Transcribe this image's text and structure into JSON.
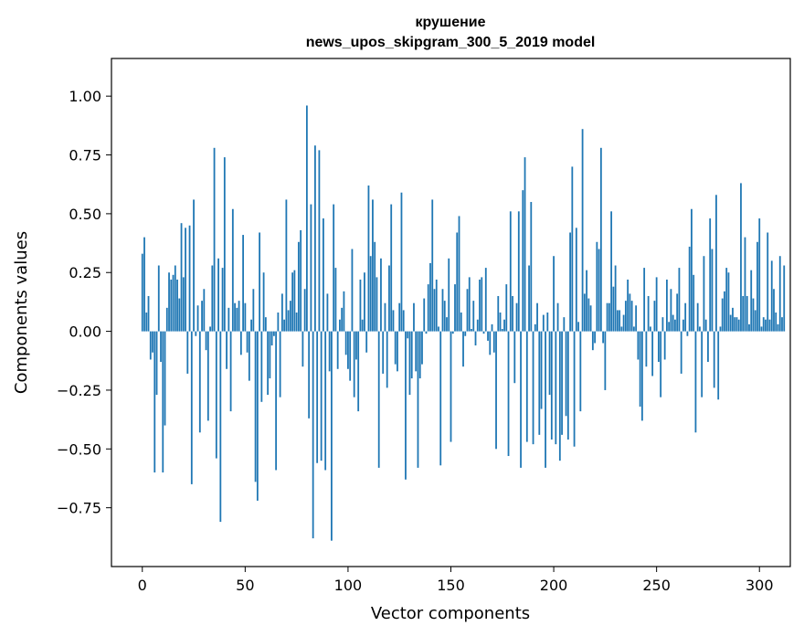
{
  "chart_data": {
    "type": "bar",
    "title": "крушение",
    "subtitle": "news_upos_skipgram_300_5_2019 model",
    "xlabel": "Vector components",
    "ylabel": "Components values",
    "xlim": [
      -15,
      315
    ],
    "ylim": [
      -1.0,
      1.16
    ],
    "xticks": [
      0,
      50,
      100,
      150,
      200,
      250,
      300
    ],
    "yticks": [
      -0.75,
      -0.5,
      -0.25,
      0.0,
      0.25,
      0.5,
      0.75,
      1.0
    ],
    "xtick_labels": [
      "0",
      "50",
      "100",
      "150",
      "200",
      "250",
      "300"
    ],
    "ytick_labels": [
      "−0.75",
      "−0.50",
      "−0.25",
      "0.00",
      "0.25",
      "0.50",
      "0.75",
      "1.00"
    ],
    "grid": false,
    "bar_color": "#1f77b4",
    "values": [
      0.33,
      0.4,
      0.08,
      0.15,
      -0.12,
      -0.09,
      -0.6,
      -0.27,
      0.28,
      -0.13,
      -0.6,
      -0.4,
      0.1,
      0.25,
      0.22,
      0.24,
      0.28,
      0.22,
      0.14,
      0.46,
      0.23,
      0.44,
      -0.18,
      0.45,
      -0.65,
      0.56,
      -0.02,
      0.11,
      -0.43,
      0.13,
      0.18,
      -0.08,
      -0.38,
      0.02,
      0.28,
      0.78,
      -0.54,
      0.31,
      -0.81,
      0.27,
      0.74,
      -0.16,
      0.1,
      -0.34,
      0.52,
      0.12,
      0.1,
      0.13,
      -0.1,
      0.41,
      0.12,
      -0.09,
      -0.21,
      0.05,
      0.18,
      -0.64,
      -0.72,
      0.42,
      -0.3,
      0.25,
      0.06,
      -0.27,
      -0.2,
      -0.06,
      -0.02,
      -0.59,
      0.08,
      -0.28,
      0.16,
      0.05,
      0.56,
      0.09,
      0.13,
      0.25,
      0.26,
      0.08,
      0.38,
      0.43,
      -0.15,
      0.18,
      0.96,
      -0.37,
      0.54,
      -0.88,
      0.79,
      -0.56,
      0.77,
      -0.55,
      0.48,
      -0.59,
      0.16,
      -0.17,
      -0.89,
      0.54,
      0.27,
      -0.16,
      0.05,
      0.1,
      0.17,
      -0.1,
      -0.16,
      -0.21,
      0.35,
      -0.28,
      -0.12,
      -0.34,
      0.22,
      0.05,
      0.25,
      -0.09,
      0.62,
      0.32,
      0.56,
      0.38,
      0.23,
      -0.58,
      0.31,
      -0.18,
      0.12,
      -0.24,
      0.28,
      0.54,
      0.09,
      -0.14,
      -0.17,
      0.12,
      0.59,
      0.09,
      -0.63,
      -0.03,
      -0.27,
      -0.2,
      0.12,
      -0.17,
      -0.58,
      -0.2,
      -0.14,
      0.14,
      -0.01,
      0.2,
      0.29,
      0.56,
      0.18,
      0.22,
      0.02,
      -0.57,
      0.18,
      0.13,
      0.06,
      0.31,
      -0.47,
      -0.01,
      0.2,
      0.42,
      0.49,
      0.08,
      -0.15,
      -0.02,
      0.18,
      0.23,
      0.01,
      0.13,
      -0.06,
      0.05,
      0.22,
      0.23,
      -0.01,
      0.27,
      -0.04,
      -0.1,
      0.03,
      -0.09,
      -0.5,
      0.15,
      0.08,
      0.01,
      0.05,
      0.2,
      -0.53,
      0.51,
      0.15,
      -0.22,
      0.12,
      0.51,
      -0.58,
      0.6,
      0.74,
      -0.47,
      0.28,
      0.55,
      -0.48,
      0.03,
      0.12,
      -0.44,
      -0.33,
      0.07,
      -0.58,
      0.08,
      -0.27,
      -0.46,
      0.32,
      -0.48,
      0.12,
      -0.55,
      -0.44,
      0.06,
      -0.36,
      -0.46,
      0.42,
      0.7,
      -0.49,
      0.44,
      0.04,
      -0.34,
      0.86,
      0.16,
      0.26,
      0.14,
      0.11,
      -0.08,
      -0.05,
      0.38,
      0.35,
      0.78,
      -0.05,
      -0.25,
      0.12,
      0.12,
      0.51,
      0.19,
      0.28,
      0.09,
      0.09,
      0.02,
      0.07,
      0.13,
      0.22,
      0.16,
      0.13,
      0.02,
      0.11,
      -0.12,
      -0.32,
      -0.38,
      0.27,
      -0.15,
      0.15,
      0.02,
      -0.19,
      0.13,
      0.23,
      -0.13,
      -0.28,
      0.06,
      -0.12,
      0.22,
      0.04,
      0.18,
      0.07,
      0.05,
      0.16,
      0.27,
      -0.18,
      0.05,
      0.12,
      -0.02,
      0.36,
      0.52,
      0.24,
      -0.43,
      0.12,
      0.02,
      -0.28,
      0.32,
      0.05,
      -0.13,
      0.48,
      0.35,
      -0.24,
      0.58,
      -0.29,
      0.02,
      0.14,
      0.17,
      0.27,
      0.25,
      0.07,
      0.1,
      0.06,
      0.06,
      0.05,
      0.63,
      0.15,
      0.4,
      0.15,
      0.03,
      0.26,
      0.14,
      0.09,
      0.38,
      0.48,
      0.02,
      0.06,
      0.05,
      0.42,
      0.05,
      0.3,
      0.18,
      0.08,
      0.03,
      0.32,
      0.06,
      0.28
    ]
  }
}
